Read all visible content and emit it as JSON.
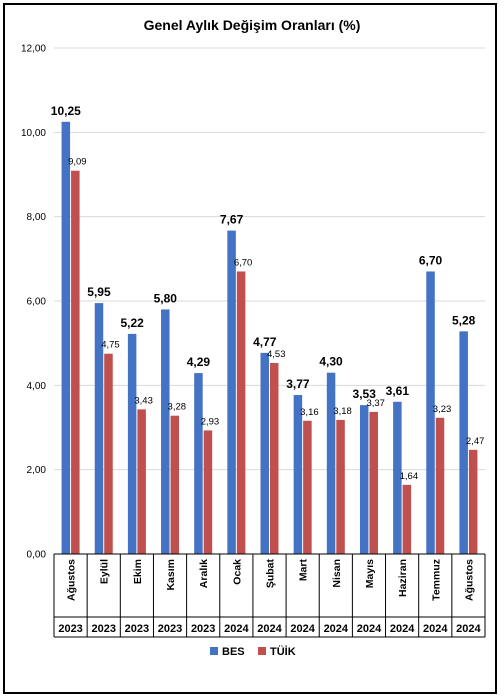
{
  "chart_data": {
    "type": "bar",
    "title": "Genel Aylık Değişim Oranları (%)",
    "categories": [
      "Ağustos",
      "Eylül",
      "Ekim",
      "Kasım",
      "Aralık",
      "Ocak",
      "Şubat",
      "Mart",
      "Nisan",
      "Mayıs",
      "Haziran",
      "Temmuz",
      "Ağustos"
    ],
    "years": [
      "2023",
      "2023",
      "2023",
      "2023",
      "2023",
      "2024",
      "2024",
      "2024",
      "2024",
      "2024",
      "2024",
      "2024",
      "2024"
    ],
    "series": [
      {
        "name": "BES",
        "color": "#4472c4",
        "values": [
          10.25,
          5.95,
          5.22,
          5.8,
          4.29,
          7.67,
          4.77,
          3.77,
          4.3,
          3.53,
          3.61,
          6.7,
          5.28
        ],
        "labels": [
          "10,25",
          "5,95",
          "5,22",
          "5,80",
          "4,29",
          "7,67",
          "4,77",
          "3,77",
          "4,30",
          "3,53",
          "3,61",
          "6,70",
          "5,28"
        ]
      },
      {
        "name": "TÜİK",
        "color": "#c0504d",
        "values": [
          9.09,
          4.75,
          3.43,
          3.28,
          2.93,
          6.7,
          4.53,
          3.16,
          3.18,
          3.37,
          1.64,
          3.23,
          2.47
        ],
        "labels": [
          "9,09",
          "4,75",
          "3,43",
          "3,28",
          "2,93",
          "6,70",
          "4,53",
          "3,16",
          "3,18",
          "3,37",
          "1,64",
          "3,23",
          "2,47"
        ]
      }
    ],
    "ylim": [
      0,
      12
    ],
    "yticks": [
      "0,00",
      "2,00",
      "4,00",
      "6,00",
      "8,00",
      "10,00",
      "12,00"
    ],
    "grid": true,
    "legend_position": "bottom"
  }
}
